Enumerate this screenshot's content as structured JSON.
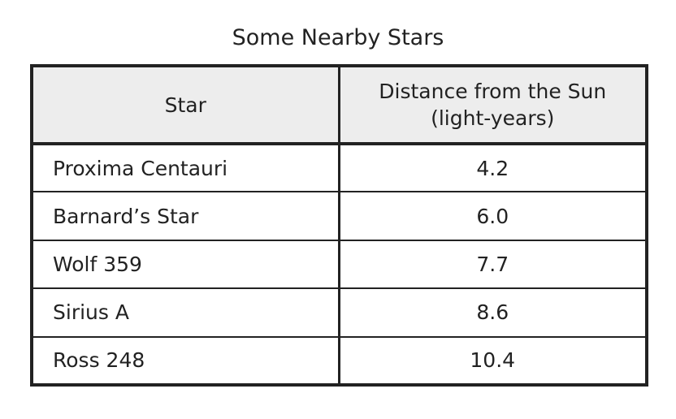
{
  "title": "Some Nearby Stars",
  "table": {
    "headers": [
      "Star",
      "Distance from the Sun",
      "(light-years)"
    ],
    "rows": [
      {
        "star": "Proxima Centauri",
        "distance": "4.2"
      },
      {
        "star": "Barnard’s Star",
        "distance": "6.0"
      },
      {
        "star": "Wolf 359",
        "distance": "7.7"
      },
      {
        "star": "Sirius A",
        "distance": "8.6"
      },
      {
        "star": "Ross 248",
        "distance": "10.4"
      }
    ]
  },
  "colors": {
    "border": "#222222",
    "header_background": "#ededed",
    "text": "#222222"
  }
}
